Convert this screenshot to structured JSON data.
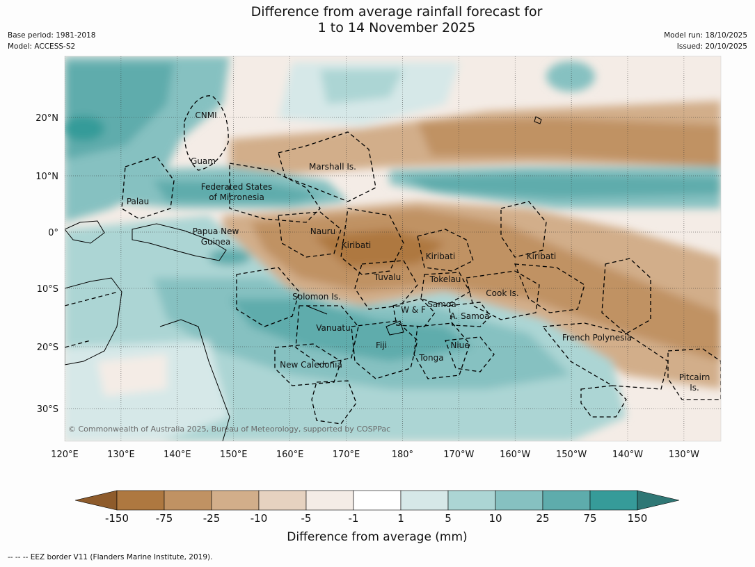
{
  "title_line1": "Difference from average rainfall forecast for",
  "title_line2": "1 to 14 November 2025",
  "meta": {
    "base_period": "Base period: 1981-2018",
    "model": "Model: ACCESS-S2",
    "model_run": "Model run: 18/10/2025",
    "issued": "Issued: 20/10/2025"
  },
  "lon_ticks": [
    "120°E",
    "130°E",
    "140°E",
    "150°E",
    "160°E",
    "170°E",
    "180°",
    "170°W",
    "160°W",
    "150°W",
    "140°W",
    "130°W"
  ],
  "lat_ticks": [
    "20°N",
    "10°N",
    "0°",
    "10°S",
    "20°S",
    "30°S"
  ],
  "region_labels": {
    "cnmi": "CNMI",
    "guam": "Guam",
    "marshall": "Marshall Is.",
    "fsm_1": "Federated States",
    "fsm_2": "of Micronesia",
    "palau": "Palau",
    "png_1": "Papua New",
    "png_2": "Guinea",
    "nauru": "Nauru",
    "kiribati_w": "Kiribati",
    "kiribati_c": "Kiribati",
    "kiribati_e": "Kiribati",
    "tuvalu": "Tuvalu",
    "tokelau": "Tokelau",
    "cook": "Cook Is.",
    "solomon": "Solomon Is.",
    "samoa": "Samoa",
    "wf": "W & F",
    "asamoa": "A. Samoa",
    "vanuatu": "Vanuatu",
    "fiji": "Fiji",
    "niue": "Niue",
    "tonga": "Tonga",
    "frenchpoly": "French Polynesia",
    "newcal": "New Caledonia",
    "pitcairn_1": "Pitcairn",
    "pitcairn_2": "Is."
  },
  "copyright": "© Commonwealth of Australia 2025, Bureau of Meteorology, supported by COSPPac",
  "colorbar": {
    "labels": [
      "-150",
      "-75",
      "-25",
      "-10",
      "-5",
      "-1",
      "1",
      "5",
      "10",
      "25",
      "75",
      "150"
    ],
    "colors": [
      "#ae7840",
      "#c09263",
      "#d2ae8a",
      "#e6d2c0",
      "#f4ece6",
      "#ffffff",
      "#d6e8e8",
      "#acd5d4",
      "#86c1c1",
      "#5eacac",
      "#369b99"
    ],
    "under_color": "#8e5b2b",
    "over_color": "#2f7775",
    "title": "Difference from average (mm)"
  },
  "footnote": "--  --  -- EEZ border V11 (Flanders Marine Institute, 2019)."
}
